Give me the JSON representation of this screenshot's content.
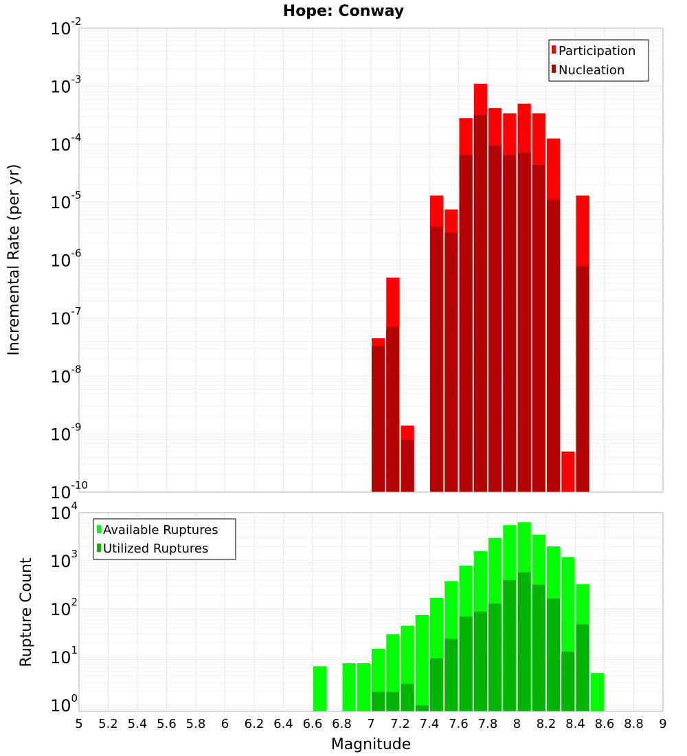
{
  "title": "Hope: Conway",
  "chart_data": [
    {
      "type": "bar",
      "title": "Hope: Conway",
      "ylabel": "Incremental Rate (per yr)",
      "xlabel": "",
      "yscale": "log",
      "ylim": [
        1e-10,
        0.01
      ],
      "xlim": [
        5,
        9
      ],
      "bin_width": 0.1,
      "legend_position": "top-right",
      "grid": true,
      "series": [
        {
          "name": "Participation",
          "color": "#ff0000",
          "x": [
            7.0,
            7.1,
            7.2,
            7.4,
            7.5,
            7.6,
            7.7,
            7.8,
            7.9,
            8.0,
            8.1,
            8.2,
            8.3,
            8.4
          ],
          "values": [
            4.5e-08,
            5e-07,
            1.4e-09,
            1.3e-05,
            7.5e-06,
            0.00028,
            0.0011,
            0.00042,
            0.00034,
            0.0005,
            0.00034,
            0.000125,
            5e-10,
            1.3e-05
          ]
        },
        {
          "name": "Nucleation",
          "color": "#b30000",
          "x": [
            7.0,
            7.1,
            7.2,
            7.4,
            7.5,
            7.6,
            7.7,
            7.8,
            7.9,
            8.0,
            8.1,
            8.2,
            8.3,
            8.4
          ],
          "values": [
            3.3e-08,
            7e-08,
            8e-10,
            3.8e-06,
            3e-06,
            6.5e-05,
            0.00032,
            9.5e-05,
            6.5e-05,
            7.2e-05,
            4.4e-05,
            1.1e-05,
            null,
            7.8e-07
          ]
        }
      ],
      "y_ticks": [
        {
          "base": "10",
          "exp": "-10"
        },
        {
          "base": "10",
          "exp": "-9"
        },
        {
          "base": "10",
          "exp": "-8"
        },
        {
          "base": "10",
          "exp": "-7"
        },
        {
          "base": "10",
          "exp": "-6"
        },
        {
          "base": "10",
          "exp": "-5"
        },
        {
          "base": "10",
          "exp": "-4"
        },
        {
          "base": "10",
          "exp": "-3"
        },
        {
          "base": "10",
          "exp": "-2"
        }
      ]
    },
    {
      "type": "bar",
      "title": "",
      "ylabel": "Rupture Count",
      "xlabel": "Magnitude",
      "yscale": "log",
      "ylim": [
        0.75,
        10000
      ],
      "xlim": [
        5,
        9
      ],
      "bin_width": 0.1,
      "legend_position": "top-left",
      "grid": true,
      "series": [
        {
          "name": "Available Ruptures",
          "color": "#00ff00",
          "x": [
            6.6,
            6.8,
            6.9,
            7.0,
            7.1,
            7.2,
            7.3,
            7.4,
            7.5,
            7.6,
            7.7,
            7.8,
            7.9,
            8.0,
            8.1,
            8.2,
            8.3,
            8.4,
            8.5
          ],
          "values": [
            6.5,
            7.5,
            7.5,
            15,
            30,
            45,
            75,
            170,
            380,
            800,
            1600,
            3000,
            5500,
            6300,
            3500,
            2000,
            1200,
            330,
            4.7
          ]
        },
        {
          "name": "Utilized Ruptures",
          "color": "#00b300",
          "x": [
            7.0,
            7.1,
            7.2,
            7.3,
            7.4,
            7.5,
            7.6,
            7.7,
            7.8,
            7.9,
            8.0,
            8.1,
            8.2,
            8.3,
            8.4
          ],
          "values": [
            1.9,
            1.9,
            2.8,
            1.0,
            9.5,
            24,
            70,
            88,
            130,
            400,
            580,
            320,
            165,
            13,
            48
          ]
        }
      ],
      "x_ticks": [
        "5",
        "5.2",
        "5.4",
        "5.6",
        "5.8",
        "6",
        "6.2",
        "6.4",
        "6.6",
        "6.8",
        "7",
        "7.2",
        "7.4",
        "7.6",
        "7.8",
        "8",
        "8.2",
        "8.4",
        "8.6",
        "8.8",
        "9"
      ],
      "y_ticks": [
        {
          "value": 1,
          "base": "10",
          "exp": "0"
        },
        {
          "value": 10,
          "base": "10",
          "exp": "1"
        },
        {
          "value": 100,
          "base": "10",
          "exp": "2"
        },
        {
          "value": 1000,
          "base": "10",
          "exp": "3"
        },
        {
          "value": 10000,
          "base": "10",
          "exp": "4"
        }
      ]
    }
  ]
}
